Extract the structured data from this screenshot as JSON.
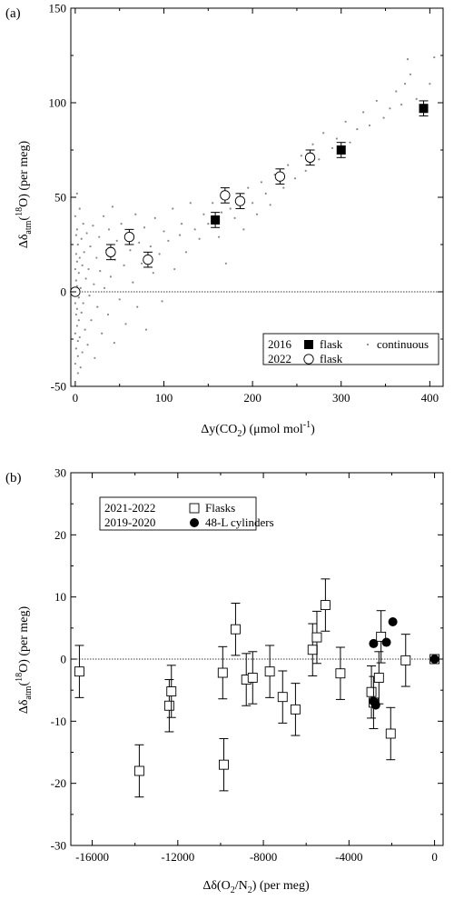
{
  "chart_data": [
    {
      "panel": "(a)",
      "type": "scatter",
      "xlabel": "Δy(CO₂)  (μmol mol⁻¹)",
      "ylabel": "Δδatm(¹⁸O)  (per meg)",
      "xlim": [
        -5,
        415
      ],
      "ylim": [
        -50,
        150
      ],
      "x_ticks": [
        0,
        100,
        200,
        300,
        400
      ],
      "y_ticks": [
        -50,
        0,
        50,
        100,
        150
      ],
      "zero_line": true,
      "grid": false,
      "legend": {
        "placement": "bottom-right",
        "rows": [
          {
            "year": "2016",
            "marker": "filled-square",
            "label": "flask",
            "extra_marker": "dot",
            "extra_label": "continuous"
          },
          {
            "year": "2022",
            "marker": "open-circle",
            "label": "flask"
          }
        ]
      },
      "series": [
        {
          "name": "2016 flask",
          "marker": "filled-square",
          "points": [
            {
              "x": 158,
              "y": 38,
              "err": 4
            },
            {
              "x": 300,
              "y": 75,
              "err": 4
            },
            {
              "x": 393,
              "y": 97,
              "err": 4
            }
          ]
        },
        {
          "name": "2022 flask",
          "marker": "open-circle",
          "points": [
            {
              "x": 0,
              "y": 0,
              "err": 0
            },
            {
              "x": 40,
              "y": 21,
              "err": 4
            },
            {
              "x": 61,
              "y": 29,
              "err": 4
            },
            {
              "x": 82,
              "y": 17,
              "err": 4
            },
            {
              "x": 169,
              "y": 51,
              "err": 4
            },
            {
              "x": 186,
              "y": 48,
              "err": 4
            },
            {
              "x": 231,
              "y": 61,
              "err": 4
            },
            {
              "x": 265,
              "y": 71,
              "err": 4
            }
          ]
        },
        {
          "name": "continuous",
          "marker": "dot",
          "points": [
            {
              "x": 0,
              "y": 40
            },
            {
              "x": 1,
              "y": 30
            },
            {
              "x": 1,
              "y": 20
            },
            {
              "x": 0,
              "y": 12
            },
            {
              "x": 1,
              "y": 6
            },
            {
              "x": 0,
              "y": -6
            },
            {
              "x": 1,
              "y": -12
            },
            {
              "x": 0,
              "y": -22
            },
            {
              "x": 1,
              "y": -30
            },
            {
              "x": 0,
              "y": -38
            },
            {
              "x": 2,
              "y": 52
            },
            {
              "x": 2,
              "y": 33
            },
            {
              "x": 2,
              "y": 16
            },
            {
              "x": 2,
              "y": 3
            },
            {
              "x": 2,
              "y": -9
            },
            {
              "x": 2,
              "y": -18
            },
            {
              "x": 3,
              "y": -26
            },
            {
              "x": 3,
              "y": -34
            },
            {
              "x": 3,
              "y": -43
            },
            {
              "x": 3,
              "y": 25
            },
            {
              "x": 4,
              "y": 10
            },
            {
              "x": 4,
              "y": -3
            },
            {
              "x": 4,
              "y": -15
            },
            {
              "x": 5,
              "y": 44
            },
            {
              "x": 5,
              "y": 18
            },
            {
              "x": 5,
              "y": -24
            },
            {
              "x": 6,
              "y": 2
            },
            {
              "x": 6,
              "y": -40
            },
            {
              "x": 7,
              "y": 28
            },
            {
              "x": 7,
              "y": -11
            },
            {
              "x": 8,
              "y": 14
            },
            {
              "x": 8,
              "y": -32
            },
            {
              "x": 9,
              "y": 36
            },
            {
              "x": 9,
              "y": -6
            },
            {
              "x": 10,
              "y": 21
            },
            {
              "x": 11,
              "y": -20
            },
            {
              "x": 12,
              "y": 7
            },
            {
              "x": 13,
              "y": 31
            },
            {
              "x": 14,
              "y": -28
            },
            {
              "x": 15,
              "y": 12
            },
            {
              "x": 16,
              "y": -2
            },
            {
              "x": 17,
              "y": 24
            },
            {
              "x": 18,
              "y": -15
            },
            {
              "x": 20,
              "y": 35
            },
            {
              "x": 21,
              "y": 4
            },
            {
              "x": 22,
              "y": -35
            },
            {
              "x": 24,
              "y": 18
            },
            {
              "x": 25,
              "y": -8
            },
            {
              "x": 27,
              "y": 29
            },
            {
              "x": 28,
              "y": 11
            },
            {
              "x": 30,
              "y": -22
            },
            {
              "x": 32,
              "y": 40
            },
            {
              "x": 33,
              "y": 2
            },
            {
              "x": 35,
              "y": 22
            },
            {
              "x": 37,
              "y": -12
            },
            {
              "x": 38,
              "y": 33
            },
            {
              "x": 40,
              "y": 8
            },
            {
              "x": 42,
              "y": 45
            },
            {
              "x": 44,
              "y": -27
            },
            {
              "x": 45,
              "y": 17
            },
            {
              "x": 47,
              "y": 27
            },
            {
              "x": 50,
              "y": -4
            },
            {
              "x": 52,
              "y": 36
            },
            {
              "x": 55,
              "y": 14
            },
            {
              "x": 57,
              "y": -17
            },
            {
              "x": 60,
              "y": 30
            },
            {
              "x": 62,
              "y": 22
            },
            {
              "x": 65,
              "y": 5
            },
            {
              "x": 68,
              "y": 41
            },
            {
              "x": 70,
              "y": -8
            },
            {
              "x": 72,
              "y": 26
            },
            {
              "x": 75,
              "y": 15
            },
            {
              "x": 78,
              "y": 34
            },
            {
              "x": 80,
              "y": -20
            },
            {
              "x": 85,
              "y": 24
            },
            {
              "x": 88,
              "y": 10
            },
            {
              "x": 90,
              "y": 39
            },
            {
              "x": 95,
              "y": 20
            },
            {
              "x": 98,
              "y": -5
            },
            {
              "x": 100,
              "y": 32
            },
            {
              "x": 105,
              "y": 27
            },
            {
              "x": 110,
              "y": 44
            },
            {
              "x": 112,
              "y": 12
            },
            {
              "x": 118,
              "y": 30
            },
            {
              "x": 120,
              "y": 36
            },
            {
              "x": 125,
              "y": 21
            },
            {
              "x": 130,
              "y": 47
            },
            {
              "x": 135,
              "y": 33
            },
            {
              "x": 140,
              "y": 28
            },
            {
              "x": 145,
              "y": 41
            },
            {
              "x": 150,
              "y": 36
            },
            {
              "x": 155,
              "y": 47
            },
            {
              "x": 162,
              "y": 29
            },
            {
              "x": 165,
              "y": 42
            },
            {
              "x": 170,
              "y": 15
            },
            {
              "x": 175,
              "y": 44
            },
            {
              "x": 180,
              "y": 39
            },
            {
              "x": 185,
              "y": 50
            },
            {
              "x": 190,
              "y": 33
            },
            {
              "x": 195,
              "y": 55
            },
            {
              "x": 200,
              "y": 47
            },
            {
              "x": 205,
              "y": 41
            },
            {
              "x": 210,
              "y": 58
            },
            {
              "x": 215,
              "y": 52
            },
            {
              "x": 220,
              "y": 46
            },
            {
              "x": 225,
              "y": 62
            },
            {
              "x": 235,
              "y": 55
            },
            {
              "x": 240,
              "y": 67
            },
            {
              "x": 248,
              "y": 60
            },
            {
              "x": 255,
              "y": 72
            },
            {
              "x": 260,
              "y": 64
            },
            {
              "x": 268,
              "y": 78
            },
            {
              "x": 275,
              "y": 70
            },
            {
              "x": 280,
              "y": 84
            },
            {
              "x": 290,
              "y": 76
            },
            {
              "x": 295,
              "y": 81
            },
            {
              "x": 305,
              "y": 90
            },
            {
              "x": 310,
              "y": 79
            },
            {
              "x": 318,
              "y": 86
            },
            {
              "x": 325,
              "y": 95
            },
            {
              "x": 332,
              "y": 88
            },
            {
              "x": 340,
              "y": 101
            },
            {
              "x": 348,
              "y": 92
            },
            {
              "x": 355,
              "y": 97
            },
            {
              "x": 362,
              "y": 106
            },
            {
              "x": 368,
              "y": 99
            },
            {
              "x": 372,
              "y": 110
            },
            {
              "x": 375,
              "y": 123
            },
            {
              "x": 378,
              "y": 115
            },
            {
              "x": 385,
              "y": 102
            },
            {
              "x": 400,
              "y": 110
            },
            {
              "x": 405,
              "y": 124
            }
          ]
        }
      ]
    },
    {
      "panel": "(b)",
      "type": "scatter",
      "xlabel": "Δδ(O₂/N₂)  (per meg)",
      "ylabel": "Δδatm(¹⁸O)  (per meg)",
      "xlim": [
        -17000,
        400
      ],
      "ylim": [
        -30,
        30
      ],
      "x_ticks": [
        -16000,
        -12000,
        -8000,
        -4000,
        0
      ],
      "y_ticks": [
        -30,
        -20,
        -10,
        0,
        10,
        20,
        30
      ],
      "zero_line": true,
      "grid": false,
      "legend": {
        "placement": "top-left",
        "rows": [
          {
            "year": "2021-2022",
            "marker": "open-square",
            "label": "Flasks"
          },
          {
            "year": "2019-2020",
            "marker": "filled-circle",
            "label": "48-L cylinders"
          }
        ]
      },
      "series": [
        {
          "name": "Flasks",
          "marker": "open-square",
          "points": [
            {
              "x": -16600,
              "y": -2,
              "err": 4.2
            },
            {
              "x": -13800,
              "y": -18,
              "err": 4.2
            },
            {
              "x": -12400,
              "y": -7.5,
              "err": 4.2
            },
            {
              "x": -12300,
              "y": -5.2,
              "err": 4.2
            },
            {
              "x": -9900,
              "y": -2.2,
              "err": 4.2
            },
            {
              "x": -9850,
              "y": -17,
              "err": 4.2
            },
            {
              "x": -9300,
              "y": 4.8,
              "err": 4.2
            },
            {
              "x": -8800,
              "y": -3.3,
              "err": 4.2
            },
            {
              "x": -8500,
              "y": -3,
              "err": 4.2
            },
            {
              "x": -7700,
              "y": -2,
              "err": 4.2
            },
            {
              "x": -7100,
              "y": -6.1,
              "err": 4.2
            },
            {
              "x": -6500,
              "y": -8.1,
              "err": 4.2
            },
            {
              "x": -5700,
              "y": 1.5,
              "err": 4.2
            },
            {
              "x": -5500,
              "y": 3.5,
              "err": 4.2
            },
            {
              "x": -5100,
              "y": 8.7,
              "err": 4.2
            },
            {
              "x": -4400,
              "y": -2.3,
              "err": 4.2
            },
            {
              "x": -2950,
              "y": -5.3,
              "err": 4.2
            },
            {
              "x": -2850,
              "y": -7,
              "err": 4.2
            },
            {
              "x": -2600,
              "y": -3,
              "err": 4.2
            },
            {
              "x": -2500,
              "y": 3.6,
              "err": 4.2
            },
            {
              "x": -2050,
              "y": -12,
              "err": 4.2
            },
            {
              "x": -1350,
              "y": -0.2,
              "err": 4.2
            },
            {
              "x": 0,
              "y": 0,
              "err": 0
            }
          ]
        },
        {
          "name": "48-L cylinders",
          "marker": "filled-circle",
          "points": [
            {
              "x": -2850,
              "y": 2.5
            },
            {
              "x": -2850,
              "y": -6.8
            },
            {
              "x": -2750,
              "y": -7.4
            },
            {
              "x": -2250,
              "y": 2.7
            },
            {
              "x": -1950,
              "y": 6
            },
            {
              "x": 0,
              "y": 0
            }
          ]
        }
      ]
    }
  ]
}
